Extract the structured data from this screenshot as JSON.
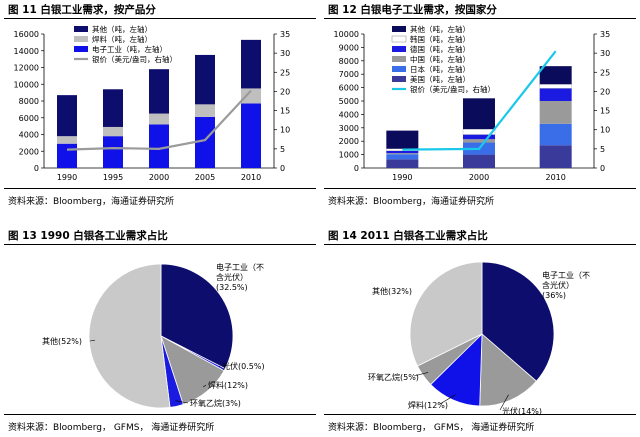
{
  "chart_data": [
    {
      "type": "bar",
      "title": "图 11 白银工业需求，按产品分",
      "source": "资料来源：Bloomberg，海通证券研究所",
      "categories": [
        "1990",
        "1995",
        "2000",
        "2005",
        "2010"
      ],
      "stacked": true,
      "ylim": [
        0,
        16000
      ],
      "yticks": [
        "0",
        "2000",
        "4000",
        "6000",
        "8000",
        "10000",
        "12000",
        "14000",
        "16000"
      ],
      "y2lim": [
        0,
        35
      ],
      "y2ticks": [
        "0",
        "5",
        "10",
        "15",
        "20",
        "25",
        "30",
        "35"
      ],
      "series": [
        {
          "name": "电子工业（吨，左轴）",
          "color": "#1010e8",
          "values": [
            2900,
            3800,
            5200,
            6100,
            7700
          ]
        },
        {
          "name": "焊料（吨，左轴）",
          "color": "#bfbfbf",
          "values": [
            900,
            1100,
            1300,
            1500,
            1800
          ]
        },
        {
          "name": "其他（吨，左轴）",
          "color": "#0d0d6e",
          "values": [
            4900,
            4500,
            5300,
            5900,
            5800
          ]
        }
      ],
      "line": {
        "name": "银价（美元/盎司，右轴）",
        "color": "#9b9b9b",
        "values": [
          4.8,
          5.2,
          5.0,
          7.3,
          20.2
        ]
      },
      "legend_position": "top-left"
    },
    {
      "type": "bar",
      "title": "图 12 白银电子工业需求，按国家分",
      "source": "资料来源：Bloomberg，海通证券研究所",
      "categories": [
        "1990",
        "2000",
        "2010"
      ],
      "stacked": true,
      "ylim": [
        0,
        10000
      ],
      "yticks": [
        "0",
        "1000",
        "2000",
        "3000",
        "4000",
        "5000",
        "6000",
        "7000",
        "8000",
        "9000",
        "10000"
      ],
      "y2lim": [
        0,
        35
      ],
      "y2ticks": [
        "0",
        "5",
        "10",
        "15",
        "20",
        "25",
        "30",
        "35"
      ],
      "series": [
        {
          "name": "美国（吨，左轴）",
          "color": "#3a3a9a",
          "values": [
            650,
            1000,
            1700
          ]
        },
        {
          "name": "日本（吨，左轴）",
          "color": "#3a6ee8",
          "values": [
            380,
            900,
            1600
          ]
        },
        {
          "name": "中国（吨，左轴）",
          "color": "#9a9a9a",
          "values": [
            80,
            250,
            1700
          ]
        },
        {
          "name": "德国（吨，左轴）",
          "color": "#1a1ae0",
          "values": [
            180,
            350,
            950
          ]
        },
        {
          "name": "韩国（吨，左轴）",
          "color": "#ffffff",
          "values": [
            150,
            400,
            300
          ]
        },
        {
          "name": "其他（吨，左轴）",
          "color": "#0b0b5c",
          "values": [
            1350,
            2300,
            1350
          ]
        }
      ],
      "line": {
        "name": "银价（美元/盎司，右轴）",
        "color": "#1ac8ea",
        "values": [
          4.8,
          5.0,
          30.5
        ]
      },
      "legend_position": "top-left"
    },
    {
      "type": "pie",
      "title": "图 13 1990 白银各工业需求占比",
      "source": "资料来源：Bloomberg，  GFMS，  海通证券研究所",
      "slices": [
        {
          "label": "电子工业（不含光伏）(32.5%)",
          "value": 32.5,
          "color": "#0d0d6e"
        },
        {
          "label": "光伏(0.5%)",
          "value": 0.5,
          "color": "#1a1ae0"
        },
        {
          "label": "焊料(12%)",
          "value": 12,
          "color": "#9a9a9a"
        },
        {
          "label": "环氧乙烷(3%)",
          "value": 3,
          "color": "#1a1ae0"
        },
        {
          "label": "其他(52%)",
          "value": 52,
          "color": "#c9c9c9"
        }
      ],
      "label_lines": [
        [
          "电子工业（不",
          "含光伏）",
          "(32.5%)"
        ],
        [
          "光伏(0.5%)"
        ],
        [
          "焊料(12%)"
        ],
        [
          "环氧乙烷(3%)"
        ],
        [
          "其他(52%)"
        ]
      ]
    },
    {
      "type": "pie",
      "title": "图 14 2011 白银各工业需求占比",
      "source": "资料来源：Bloomberg，  GFMS，  海通证券研究所",
      "slices": [
        {
          "label": "电子工业（不含光伏）(36%)",
          "value": 36,
          "color": "#0d0d6e"
        },
        {
          "label": "光伏(14%)",
          "value": 14,
          "color": "#9a9a9a"
        },
        {
          "label": "焊料(12%)",
          "value": 12,
          "color": "#1010e8"
        },
        {
          "label": "环氧乙烷(5%)",
          "value": 5,
          "color": "#9a9a9a"
        },
        {
          "label": "其他(32%)",
          "value": 32,
          "color": "#c9c9c9"
        }
      ],
      "label_lines": [
        [
          "电子工业（不",
          "含光伏）",
          "(36%)"
        ],
        [
          "光伏(14%)"
        ],
        [
          "焊料(12%)"
        ],
        [
          "环氧乙烷(5%)"
        ],
        [
          "其他(32%)"
        ]
      ]
    }
  ]
}
